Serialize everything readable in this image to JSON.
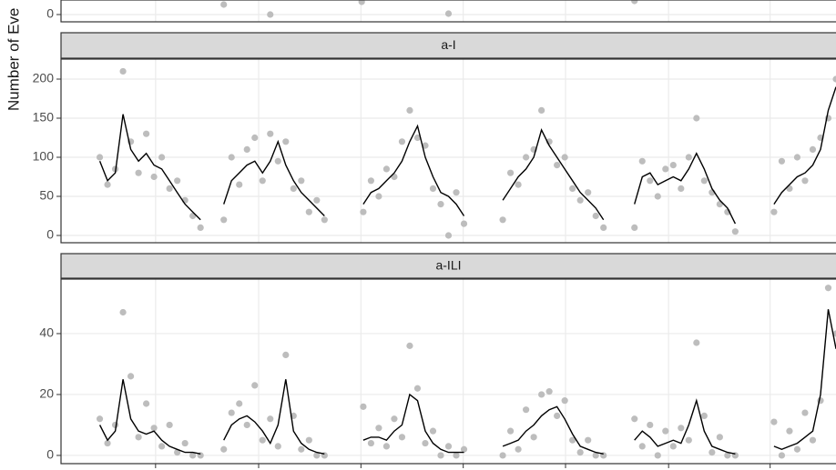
{
  "chart_data": [
    {
      "type": "scatter",
      "xlim": [
        0,
        100
      ],
      "ylim": [
        -2.4,
        4.8
      ],
      "yticks": [
        0
      ],
      "xticks": [
        12.2,
        25.5,
        38.7,
        51.9,
        65.1,
        78.4,
        91.5
      ],
      "grid": true,
      "points": {
        "color": "#bdbdbd",
        "x": [
          21,
          27,
          38.8,
          50,
          74
        ],
        "y": [
          3.3,
          0,
          4.2,
          0.3,
          4.5
        ]
      }
    },
    {
      "type": "scatter",
      "strip": "a-I",
      "ylabel": "Number of Eve",
      "xlim": [
        0,
        100
      ],
      "ylim": [
        -9.3,
        225.6
      ],
      "yticks": [
        0,
        50,
        100,
        150,
        200
      ],
      "xticks": [
        12.2,
        25.5,
        38.7,
        51.9,
        65.1,
        78.4,
        91.5
      ],
      "grid": true,
      "points": {
        "color": "#bdbdbd",
        "x": [
          5,
          6,
          7,
          8,
          9,
          10,
          11,
          12,
          13,
          14,
          15,
          16,
          17,
          18,
          21,
          22,
          23,
          24,
          25,
          26,
          27,
          28,
          29,
          30,
          31,
          32,
          33,
          34,
          39,
          40,
          41,
          42,
          43,
          44,
          45,
          46,
          47,
          48,
          49,
          50,
          51,
          52,
          57,
          58,
          59,
          60,
          61,
          62,
          63,
          64,
          65,
          66,
          67,
          68,
          69,
          70,
          74,
          75,
          76,
          77,
          78,
          79,
          80,
          81,
          82,
          83,
          84,
          85,
          86,
          87,
          92,
          93,
          94,
          95,
          96,
          97,
          98,
          99,
          100
        ],
        "y": [
          100,
          65,
          85,
          210,
          120,
          80,
          130,
          75,
          100,
          60,
          70,
          45,
          25,
          10,
          20,
          100,
          65,
          110,
          125,
          70,
          130,
          95,
          120,
          60,
          70,
          30,
          45,
          20,
          30,
          70,
          50,
          85,
          75,
          120,
          160,
          125,
          115,
          60,
          40,
          0,
          55,
          15,
          20,
          80,
          65,
          100,
          110,
          160,
          120,
          90,
          100,
          60,
          45,
          55,
          25,
          10,
          10,
          95,
          70,
          50,
          85,
          90,
          60,
          100,
          150,
          70,
          55,
          40,
          30,
          5,
          30,
          95,
          60,
          100,
          70,
          110,
          125,
          150,
          200
        ]
      },
      "line": {
        "color": "#000000",
        "x": [
          5,
          6,
          7,
          8,
          9,
          10,
          11,
          12,
          13,
          14,
          15,
          16,
          17,
          18,
          null,
          21,
          22,
          23,
          24,
          25,
          26,
          27,
          28,
          29,
          30,
          31,
          32,
          33,
          34,
          null,
          39,
          40,
          41,
          42,
          43,
          44,
          45,
          46,
          47,
          48,
          49,
          50,
          51,
          52,
          null,
          57,
          58,
          59,
          60,
          61,
          62,
          63,
          64,
          65,
          66,
          67,
          68,
          69,
          70,
          null,
          74,
          75,
          76,
          77,
          78,
          79,
          80,
          81,
          82,
          83,
          84,
          85,
          86,
          87,
          null,
          92,
          93,
          94,
          95,
          96,
          97,
          98,
          99,
          100
        ],
        "y": [
          95,
          70,
          80,
          155,
          110,
          95,
          105,
          90,
          85,
          70,
          55,
          40,
          30,
          20,
          null,
          40,
          70,
          80,
          90,
          95,
          80,
          95,
          120,
          90,
          70,
          55,
          45,
          35,
          25,
          null,
          40,
          55,
          60,
          70,
          80,
          95,
          120,
          140,
          100,
          75,
          55,
          50,
          40,
          25,
          null,
          45,
          60,
          75,
          85,
          100,
          135,
          115,
          100,
          85,
          70,
          55,
          45,
          35,
          20,
          null,
          40,
          75,
          80,
          65,
          70,
          75,
          70,
          85,
          105,
          85,
          60,
          45,
          35,
          15,
          null,
          40,
          55,
          65,
          75,
          80,
          90,
          110,
          160,
          190
        ]
      }
    },
    {
      "type": "scatter",
      "strip": "a-ILI",
      "xlim": [
        0,
        100
      ],
      "ylim": [
        -2.7,
        57.9
      ],
      "yticks": [
        0,
        20,
        40
      ],
      "xticks": [
        12.2,
        25.5,
        38.7,
        51.9,
        65.1,
        78.4,
        91.5
      ],
      "grid": true,
      "points": {
        "color": "#bdbdbd",
        "x": [
          5,
          6,
          7,
          8,
          9,
          10,
          11,
          12,
          13,
          14,
          15,
          16,
          17,
          18,
          21,
          22,
          23,
          24,
          25,
          26,
          27,
          28,
          29,
          30,
          31,
          32,
          33,
          34,
          39,
          40,
          41,
          42,
          43,
          44,
          45,
          46,
          47,
          48,
          49,
          50,
          51,
          52,
          57,
          58,
          59,
          60,
          61,
          62,
          63,
          64,
          65,
          66,
          67,
          68,
          69,
          70,
          74,
          75,
          76,
          77,
          78,
          79,
          80,
          81,
          82,
          83,
          84,
          85,
          86,
          87,
          92,
          93,
          94,
          95,
          96,
          97,
          98,
          99,
          100
        ],
        "y": [
          12,
          4,
          10,
          47,
          26,
          6,
          17,
          9,
          3,
          10,
          1,
          4,
          0,
          0,
          2,
          14,
          17,
          10,
          23,
          5,
          12,
          3,
          33,
          13,
          2,
          5,
          0,
          0,
          16,
          4,
          9,
          3,
          12,
          6,
          36,
          22,
          4,
          8,
          0,
          3,
          0,
          2,
          0,
          8,
          2,
          15,
          6,
          20,
          21,
          13,
          18,
          5,
          1,
          5,
          0,
          0,
          12,
          3,
          10,
          0,
          8,
          3,
          9,
          5,
          37,
          13,
          1,
          6,
          0,
          0,
          11,
          0,
          8,
          2,
          14,
          5,
          18,
          55,
          40
        ]
      },
      "line": {
        "color": "#000000",
        "x": [
          5,
          6,
          7,
          8,
          9,
          10,
          11,
          12,
          13,
          14,
          15,
          16,
          17,
          18,
          null,
          21,
          22,
          23,
          24,
          25,
          26,
          27,
          28,
          29,
          30,
          31,
          32,
          33,
          34,
          null,
          39,
          40,
          41,
          42,
          43,
          44,
          45,
          46,
          47,
          48,
          49,
          50,
          51,
          52,
          null,
          57,
          58,
          59,
          60,
          61,
          62,
          63,
          64,
          65,
          66,
          67,
          68,
          69,
          70,
          null,
          74,
          75,
          76,
          77,
          78,
          79,
          80,
          81,
          82,
          83,
          84,
          85,
          86,
          87,
          null,
          92,
          93,
          94,
          95,
          96,
          97,
          98,
          99,
          100
        ],
        "y": [
          10,
          5,
          8,
          25,
          12,
          8,
          7,
          8,
          5,
          3,
          2,
          1,
          1,
          0.5,
          null,
          5,
          10,
          12,
          13,
          11,
          8,
          4,
          10,
          25,
          8,
          4,
          2,
          1,
          0.5,
          null,
          5,
          6,
          6,
          5,
          8,
          10,
          20,
          18,
          8,
          4,
          2,
          1,
          1,
          1,
          null,
          3,
          4,
          5,
          8,
          10,
          13,
          15,
          16,
          12,
          7,
          3,
          2,
          1,
          0.5,
          null,
          5,
          8,
          6,
          3,
          4,
          5,
          4,
          10,
          18,
          8,
          3,
          2,
          1,
          0.5,
          null,
          3,
          2,
          3,
          4,
          6,
          8,
          20,
          48,
          35
        ]
      }
    }
  ]
}
